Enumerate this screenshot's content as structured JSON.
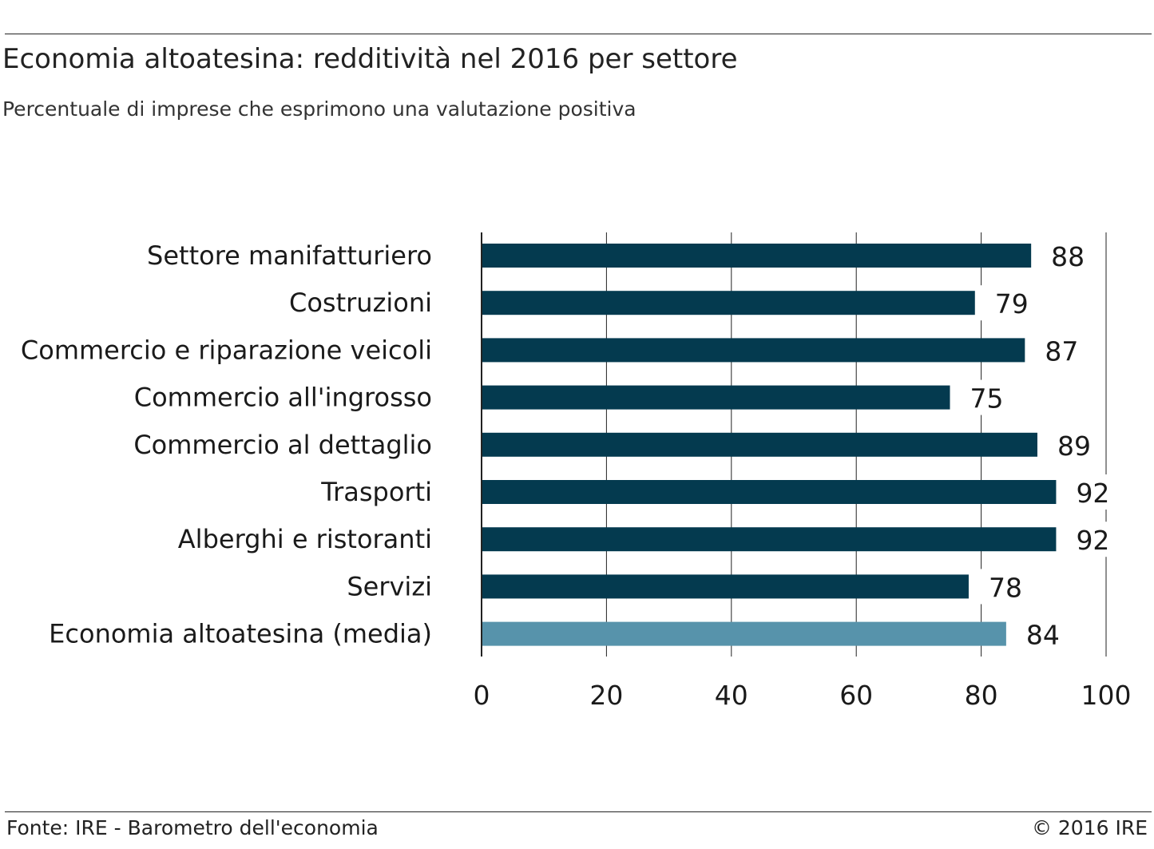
{
  "title": "Economia altoatesina: redditività nel 2016 per settore",
  "subtitle": "Percentuale di imprese che esprimono una valutazione positiva",
  "source": "Fonte: IRE - Barometro dell'economia",
  "copyright": "© 2016 IRE",
  "colors": {
    "bar": "#043a4f",
    "highlight": "#5793ab",
    "grid": "#222222"
  },
  "chart_data": {
    "type": "bar",
    "orientation": "horizontal",
    "categories": [
      "Settore manifatturiero",
      "Costruzioni",
      "Commercio e riparazione veicoli",
      "Commercio all'ingrosso",
      "Commercio al dettaglio",
      "Trasporti",
      "Alberghi e ristoranti",
      "Servizi",
      "Economia altoatesina (media)"
    ],
    "values": [
      88,
      79,
      87,
      75,
      89,
      92,
      92,
      78,
      84
    ],
    "highlight_index": 8,
    "xlim": [
      0,
      100
    ],
    "xticks": [
      0,
      20,
      40,
      60,
      80,
      100
    ],
    "grid": true,
    "data_labels": true
  }
}
